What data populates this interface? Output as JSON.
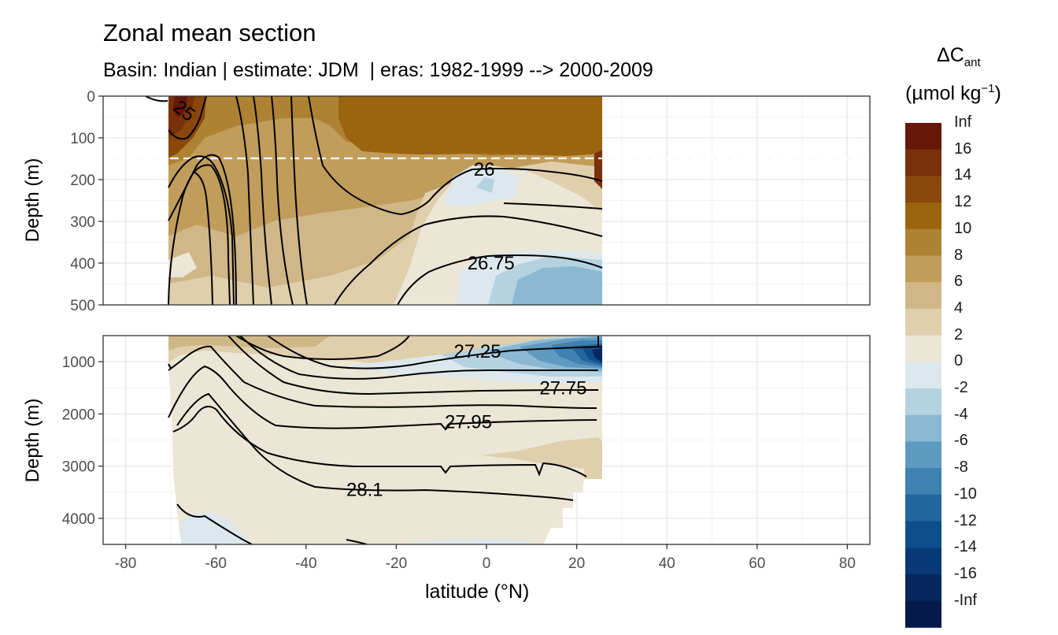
{
  "title": "Zonal mean section",
  "subtitle": "Basin: Indian | estimate: JDM  | eras: 1982-1999 --> 2000-2009",
  "ylabel_top": "Depth (m)",
  "ylabel_bottom": "Depth (m)",
  "xlabel": "latitude (°N)",
  "legend": {
    "title_line1_main": "ΔC",
    "title_line1_sub": "ant",
    "title_line2_main": "(µmol kg",
    "title_line2_sup": "−1",
    "title_line2_end": ")",
    "labels": [
      "Inf",
      "16",
      "14",
      "12",
      "10",
      "8",
      "6",
      "4",
      "2",
      "0",
      "-2",
      "-4",
      "-6",
      "-8",
      "-10",
      "-12",
      "-14",
      "-16",
      "-Inf"
    ],
    "colors": [
      "#67160a",
      "#7a300a",
      "#89470b",
      "#9b640f",
      "#ae8233",
      "#c09d5b",
      "#d0b787",
      "#e0cfad",
      "#ece6d6",
      "#dde8ee",
      "#b5d2e1",
      "#8bb8d2",
      "#5f9ac1",
      "#3f81b0",
      "#22669f",
      "#0f4e8c",
      "#093a78",
      "#06285f",
      "#041a4d"
    ]
  },
  "chart_data": {
    "type": "heatmap",
    "title": "Zonal mean section",
    "subtitle": "Basin: Indian | estimate: JDM  | eras: 1982-1999 --> 2000-2009",
    "xlabel": "latitude (°N)",
    "ylabel": "Depth (m)",
    "xlim": [
      -85,
      85
    ],
    "x_ticks": [
      -80,
      -60,
      -40,
      -20,
      0,
      20,
      40,
      60,
      80
    ],
    "x_tick_labels": [
      "-80",
      "-60",
      "-40",
      "-20",
      "0",
      "20",
      "40",
      "60",
      "80"
    ],
    "data_extent_lat": [
      -70,
      25
    ],
    "panels": [
      {
        "name": "upper",
        "ylim": [
          0,
          500
        ],
        "y_ticks": [
          0,
          100,
          200,
          300,
          400,
          500
        ],
        "y_tick_labels": [
          "0",
          "100",
          "200",
          "300",
          "400",
          "500"
        ],
        "dashed_line_depth": 150
      },
      {
        "name": "lower",
        "ylim": [
          500,
          4500
        ],
        "y_ticks": [
          1000,
          2000,
          3000,
          4000
        ],
        "y_tick_labels": [
          "1000",
          "2000",
          "3000",
          "4000"
        ]
      }
    ],
    "contour_labels": [
      {
        "text": "25",
        "lat": -67,
        "depth": 35,
        "panel": "upper"
      },
      {
        "text": "26",
        "lat": -0.5,
        "depth": 175,
        "panel": "upper"
      },
      {
        "text": "26.75",
        "lat": 1,
        "depth": 400,
        "panel": "upper"
      },
      {
        "text": "27.25",
        "lat": -2,
        "depth": 800,
        "panel": "lower"
      },
      {
        "text": "27.75",
        "lat": 17,
        "depth": 1500,
        "panel": "lower"
      },
      {
        "text": "27.95",
        "lat": -4,
        "depth": 2150,
        "panel": "lower"
      },
      {
        "text": "28.1",
        "lat": -27,
        "depth": 3450,
        "panel": "lower"
      }
    ],
    "color_scale": {
      "breaks": [
        "Inf",
        "16",
        "14",
        "12",
        "10",
        "8",
        "6",
        "4",
        "2",
        "0",
        "-2",
        "-4",
        "-6",
        "-8",
        "-10",
        "-12",
        "-14",
        "-16",
        "-Inf"
      ],
      "units": "µmol kg-1"
    }
  }
}
